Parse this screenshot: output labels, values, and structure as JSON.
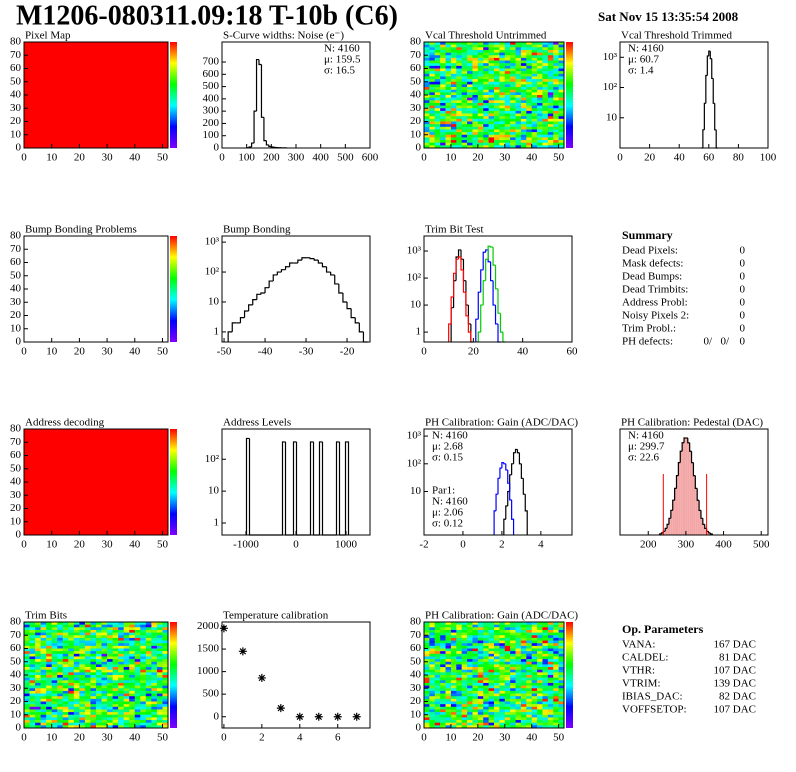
{
  "header": {
    "title": "M1206-080311.09:18 T-10b (C6)",
    "date": "Sat Nov 15 13:35:54 2008"
  },
  "chart_data": [
    {
      "type": "map",
      "title": "Pixel Map",
      "xlim": [
        0,
        52
      ],
      "ylim": [
        0,
        80
      ],
      "xticks": [
        0,
        10,
        20,
        30,
        40,
        50
      ],
      "yticks": [
        0,
        10,
        20,
        30,
        40,
        50,
        60,
        70,
        80
      ],
      "fill": "#ff0000"
    },
    {
      "type": "histogram",
      "title": "S-Curve widths: Noise (e⁻)",
      "xlim": [
        0,
        600
      ],
      "ylim": [
        0,
        863
      ],
      "xticks": [
        0,
        100,
        200,
        300,
        400,
        500,
        600
      ],
      "yticks": [
        0,
        100,
        200,
        300,
        400,
        500,
        600,
        700
      ],
      "series": [
        {
          "color": "#000000",
          "bins": [
            100,
            110,
            120,
            130,
            140,
            150,
            160,
            170,
            180,
            190,
            200,
            210,
            220,
            230,
            240,
            250,
            260
          ],
          "counts": [
            2,
            8,
            40,
            300,
            720,
            680,
            250,
            60,
            25,
            12,
            8,
            5,
            3,
            2,
            1,
            1
          ]
        }
      ],
      "stats": [
        {
          "corner": "top-right",
          "lines": [
            {
              "text": "N: 4160",
              "color": "#000000"
            },
            {
              "text": "μ: 159.5",
              "color": "#000000"
            },
            {
              "text": "σ: 16.5",
              "color": "#000000"
            }
          ]
        }
      ]
    },
    {
      "type": "map",
      "title": "Vcal Threshold Untrimmed",
      "xlim": [
        0,
        52
      ],
      "ylim": [
        0,
        80
      ],
      "xticks": [
        0,
        10,
        20,
        30,
        40,
        50
      ],
      "yticks": [
        0,
        10,
        20,
        30,
        40,
        50,
        60,
        70,
        80
      ],
      "texture": true
    },
    {
      "type": "histogram",
      "title": "Vcal Threshold Trimmed",
      "log_y": true,
      "xlim": [
        0,
        100
      ],
      "ylim": [
        1,
        3200
      ],
      "xticks": [
        0,
        20,
        40,
        60,
        80,
        100
      ],
      "yticks": [
        10,
        {
          "value": 100,
          "label": "10²"
        },
        {
          "value": 1000,
          "label": "10³"
        }
      ],
      "series": [
        {
          "color": "#000000",
          "bins": [
            55,
            56,
            57,
            58,
            59,
            60,
            61,
            62,
            63,
            64,
            65,
            66
          ],
          "counts": [
            1,
            4,
            30,
            250,
            1100,
            1600,
            900,
            200,
            30,
            4,
            1
          ]
        }
      ],
      "stats": [
        {
          "corner": "top-left",
          "lines": [
            {
              "text": "N: 4160",
              "color": "#000000"
            },
            {
              "text": "μ: 60.7",
              "color": "#000000"
            },
            {
              "text": "σ:  1.4",
              "color": "#000000"
            }
          ]
        }
      ]
    },
    {
      "type": "map",
      "title": "Bump Bonding Problems",
      "xlim": [
        0,
        52
      ],
      "ylim": [
        0,
        80
      ],
      "xticks": [
        0,
        10,
        20,
        30,
        40,
        50
      ],
      "yticks": [
        0,
        10,
        20,
        30,
        40,
        50,
        60,
        70,
        80
      ]
    },
    {
      "type": "histogram",
      "title": "Bump Bonding",
      "log_y": true,
      "xlim": [
        -50.5,
        -14.4
      ],
      "ylim": [
        0.46,
        1600
      ],
      "xticks": [
        -50,
        -40,
        -30,
        -20
      ],
      "yticks": [
        1,
        10,
        {
          "value": 100,
          "label": "10²"
        },
        {
          "value": 1000,
          "label": "10³"
        }
      ],
      "series": [
        {
          "color": "#000000",
          "bins": [
            -49,
            -48,
            -47,
            -46,
            -45,
            -44,
            -43,
            -42,
            -41,
            -40,
            -39,
            -38,
            -37,
            -36,
            -35,
            -34,
            -33,
            -32,
            -31,
            -30,
            -29,
            -28,
            -27,
            -26,
            -25,
            -24,
            -23,
            -22,
            -21,
            -20,
            -19,
            -18,
            -17,
            -16,
            -15
          ],
          "counts": [
            1,
            2,
            2,
            3,
            5,
            8,
            12,
            18,
            20,
            30,
            50,
            80,
            100,
            120,
            150,
            200,
            200,
            250,
            300,
            300,
            280,
            250,
            200,
            150,
            100,
            80,
            40,
            20,
            10,
            6,
            3,
            2,
            1,
            0
          ]
        }
      ]
    },
    {
      "type": "histogram",
      "title": "Trim Bit Test",
      "log_y": true,
      "xlim": [
        0,
        60
      ],
      "ylim": [
        0.43,
        3600
      ],
      "xticks": [
        0,
        20,
        40,
        60
      ],
      "yticks": [
        1,
        10,
        {
          "value": 100,
          "label": "10²"
        },
        {
          "value": 1000,
          "label": "10³"
        }
      ],
      "series": [
        {
          "color": "#000000",
          "bins": [
            11,
            12,
            13,
            14,
            15,
            16,
            17,
            18,
            19,
            20
          ],
          "counts": [
            8,
            80,
            600,
            1100,
            500,
            80,
            10,
            2,
            0
          ]
        },
        {
          "color": "#ff0000",
          "bins": [
            10,
            11,
            12,
            13,
            14,
            15,
            16,
            17,
            18,
            19
          ],
          "counts": [
            2,
            20,
            150,
            500,
            600,
            200,
            30,
            4,
            1
          ]
        },
        {
          "color": "#0000ff",
          "bins": [
            21,
            22,
            23,
            24,
            25,
            26,
            27,
            28,
            29,
            30,
            31
          ],
          "counts": [
            3,
            30,
            200,
            900,
            1100,
            400,
            80,
            10,
            2,
            0
          ]
        },
        {
          "color": "#00cc00",
          "bins": [
            22,
            23,
            24,
            25,
            26,
            27,
            28,
            29,
            30,
            31,
            32,
            33
          ],
          "counts": [
            1,
            10,
            80,
            500,
            1500,
            1400,
            300,
            40,
            5,
            1,
            0
          ]
        }
      ]
    },
    {
      "type": "map",
      "title": "Address decoding",
      "xlim": [
        0,
        52
      ],
      "ylim": [
        0,
        80
      ],
      "xticks": [
        0,
        10,
        20,
        30,
        40,
        50
      ],
      "yticks": [
        0,
        10,
        20,
        30,
        40,
        50,
        60,
        70,
        80
      ],
      "fill": "#ff0000"
    },
    {
      "type": "histogram",
      "title": "Address Levels",
      "log_y": true,
      "xlim": [
        -1480,
        1480
      ],
      "ylim": [
        0.42,
        890
      ],
      "xticks": [
        -1000,
        0,
        1000
      ],
      "yticks": [
        1,
        10,
        {
          "value": 100,
          "label": "10²"
        }
      ],
      "series": [
        {
          "color": "#000000",
          "bins": [
            -990,
            -930,
            -270,
            -210,
            -50,
            10,
            290,
            350,
            470,
            530,
            810,
            870,
            990,
            1050
          ],
          "counts": [
            450,
            0,
            350,
            0,
            350,
            0,
            350,
            0,
            350,
            0,
            350,
            0,
            350
          ]
        }
      ]
    },
    {
      "type": "histogram",
      "title": "PH Calibration: Gain (ADC/DAC)",
      "log_y": true,
      "xlim": [
        -2,
        5.6
      ],
      "ylim": [
        0.27,
        1800
      ],
      "xticks": [
        -2,
        0,
        2,
        4
      ],
      "yticks": [
        10,
        {
          "value": 100,
          "label": "10²"
        },
        {
          "value": 1000,
          "label": "10³"
        }
      ],
      "series": [
        {
          "color": "#000000",
          "bins": [
            2.1,
            2.2,
            2.3,
            2.4,
            2.5,
            2.6,
            2.7,
            2.8,
            2.9,
            3.0,
            3.1,
            3.2,
            3.3
          ],
          "counts": [
            1,
            3,
            10,
            40,
            100,
            250,
            330,
            250,
            100,
            30,
            8,
            2
          ]
        },
        {
          "color": "#0000ff",
          "bins": [
            1.6,
            1.7,
            1.8,
            1.9,
            2.0,
            2.1,
            2.2,
            2.3,
            2.4,
            2.5,
            2.6
          ],
          "counts": [
            2,
            8,
            30,
            70,
            110,
            100,
            60,
            20,
            5,
            1
          ]
        }
      ],
      "stats": [
        {
          "corner": "top-left",
          "lines": [
            {
              "text": "N: 4160",
              "color": "#000000"
            },
            {
              "text": "μ: 2.68",
              "color": "#000000"
            },
            {
              "text": "σ: 0.15",
              "color": "#000000"
            }
          ]
        },
        {
          "corner": "bottom-left",
          "lines": [
            {
              "text": "Par1:",
              "color": "#0000ff"
            },
            {
              "text": "N: 4160",
              "color": "#0000ff"
            },
            {
              "text": "μ: 2.06",
              "color": "#0000ff"
            },
            {
              "text": "σ: 0.12",
              "color": "#0000ff"
            }
          ]
        }
      ]
    },
    {
      "type": "histogram",
      "title": "PH Calibration: Pedestal (DAC)",
      "xlim": [
        125,
        518
      ],
      "ylim": [
        0,
        400
      ],
      "xticks": [
        200,
        300,
        400,
        500
      ],
      "series": [
        {
          "color": "#000000",
          "fill_color": "#f3a6a6",
          "bins": [
            230,
            235,
            240,
            245,
            250,
            255,
            260,
            265,
            270,
            275,
            280,
            285,
            290,
            295,
            300,
            305,
            310,
            315,
            320,
            325,
            330,
            335,
            340,
            345,
            350,
            355,
            360,
            365,
            370
          ],
          "counts": [
            4,
            8,
            14,
            25,
            40,
            63,
            93,
            131,
            176,
            224,
            273,
            316,
            348,
            366,
            366,
            348,
            316,
            273,
            224,
            176,
            131,
            93,
            63,
            40,
            25,
            14,
            8,
            4
          ]
        }
      ],
      "cuts": [
        240,
        355
      ],
      "cut_color": "#ff0000",
      "stats": [
        {
          "corner": "top-left",
          "lines": [
            {
              "text": "N: 4160",
              "color": "#000000"
            },
            {
              "text": "μ: 299.7",
              "color": "#ff0000"
            },
            {
              "text": "σ: 22.6",
              "color": "#ff0000"
            }
          ]
        }
      ]
    },
    {
      "type": "map",
      "title": "Trim Bits",
      "xlim": [
        0,
        52
      ],
      "ylim": [
        0,
        80
      ],
      "xticks": [
        0,
        10,
        20,
        30,
        40,
        50
      ],
      "yticks": [
        0,
        10,
        20,
        30,
        40,
        50,
        60,
        70,
        80
      ],
      "texture": true
    },
    {
      "type": "scatter",
      "title": "Temperature calibration",
      "xlim": [
        -0.1,
        7.7
      ],
      "ylim": [
        -250,
        2100
      ],
      "xticks": [
        0,
        2,
        4,
        6
      ],
      "yticks": [
        0,
        500,
        1000,
        1500,
        2000
      ],
      "color": "#000000",
      "marker": "star",
      "x": [
        0,
        1,
        2,
        3,
        4,
        5,
        6,
        7
      ],
      "values": [
        1960,
        1450,
        860,
        190,
        0,
        0,
        0,
        0
      ]
    },
    {
      "type": "map",
      "title": "PH Calibration: Gain (ADC/DAC)",
      "xlim": [
        0,
        52
      ],
      "ylim": [
        0,
        80
      ],
      "xticks": [
        0,
        10,
        20,
        30,
        40,
        50
      ],
      "yticks": [
        0,
        10,
        20,
        30,
        40,
        50,
        60,
        70,
        80
      ],
      "texture": true
    }
  ],
  "summary": {
    "title": "Summary",
    "rows": [
      {
        "label": "Dead Pixels:",
        "value": 0
      },
      {
        "label": "Mask defects:",
        "value": 0
      },
      {
        "label": "Dead Bumps:",
        "value": 0
      },
      {
        "label": "Dead Trimbits:",
        "value": 0
      },
      {
        "label": "Address Probl:",
        "value": 0
      },
      {
        "label": "Noisy Pixels 2:",
        "value": 0
      },
      {
        "label": "Trim Probl.:",
        "value": 0
      }
    ],
    "ph_defects": {
      "label": "PH defects:",
      "parts": [
        {
          "text": "0/",
          "color": "#000000"
        },
        {
          "text": "0/",
          "color": "#ff0000"
        },
        {
          "text": "0",
          "color": "#0000ff"
        }
      ]
    }
  },
  "op_parameters": {
    "title": "Op. Parameters",
    "rows": [
      {
        "label": "VANA:",
        "value": "167 DAC"
      },
      {
        "label": "CALDEL:",
        "value": "81 DAC"
      },
      {
        "label": "VTHR:",
        "value": "107 DAC"
      },
      {
        "label": "VTRIM:",
        "value": "139 DAC"
      },
      {
        "label": "IBIAS_DAC:",
        "value": "82 DAC"
      },
      {
        "label": "VOFFSETOP:",
        "value": "107 DAC"
      }
    ]
  }
}
